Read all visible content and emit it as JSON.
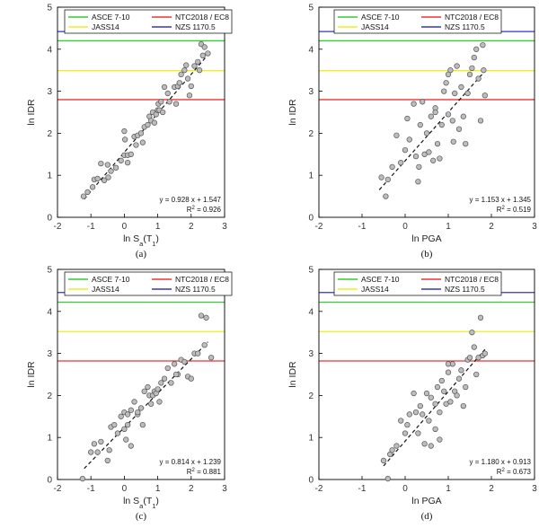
{
  "chart_data": [
    {
      "type": "scatter",
      "label": "(a)",
      "xlabel": "ln S",
      "xlabel_sub": "a",
      "xlabel_tail": "(T",
      "xlabel_sub2": "1",
      "xlabel_end": ")",
      "ylabel": "ln IDR",
      "xlim": [
        -2,
        3
      ],
      "ylim": [
        0,
        5
      ],
      "xticks": [
        "-2",
        "-1",
        "0",
        "1",
        "2",
        "3"
      ],
      "yticks": [
        "0",
        "1",
        "2",
        "3",
        "4",
        "5"
      ],
      "legend": [
        {
          "name": "ASCE 7-10",
          "color": "#33cc33"
        },
        {
          "name": "NTC2018 / EC8",
          "color": "#ee3333"
        },
        {
          "name": "JASS14",
          "color": "#eeee22"
        },
        {
          "name": "NZS 1170.5",
          "color": "#3333cc"
        }
      ],
      "hlines": [
        {
          "name": "NZS 1170.5",
          "y": 4.42,
          "color": "#3333cc"
        },
        {
          "name": "ASCE 7-10",
          "y": 4.2,
          "color": "#33cc33"
        },
        {
          "name": "JASS14",
          "y": 3.49,
          "color": "#eeee22"
        },
        {
          "name": "NTC2018 / EC8",
          "y": 2.8,
          "color": "#ee3333"
        }
      ],
      "fit": {
        "slope": 0.928,
        "intercept": 1.547,
        "x_range": [
          -1.2,
          2.5
        ]
      },
      "equation": "y = 0.928 x + 1.547",
      "r2_label": "R",
      "r2_sup": "2",
      "r2_value": " = 0.926",
      "points": [
        [
          -1.22,
          0.5
        ],
        [
          -1.1,
          0.6
        ],
        [
          -0.95,
          0.72
        ],
        [
          -0.9,
          0.9
        ],
        [
          -0.8,
          0.92
        ],
        [
          -0.7,
          1.28
        ],
        [
          -0.6,
          0.88
        ],
        [
          -0.5,
          1.25
        ],
        [
          -0.48,
          0.95
        ],
        [
          -0.4,
          1.1
        ],
        [
          -0.25,
          1.18
        ],
        [
          -0.1,
          1.35
        ],
        [
          0.0,
          1.48
        ],
        [
          0.0,
          2.05
        ],
        [
          0.02,
          1.85
        ],
        [
          0.1,
          1.3
        ],
        [
          0.1,
          1.48
        ],
        [
          0.2,
          1.5
        ],
        [
          0.3,
          1.92
        ],
        [
          0.35,
          1.72
        ],
        [
          0.4,
          1.95
        ],
        [
          0.5,
          2.0
        ],
        [
          0.55,
          1.78
        ],
        [
          0.6,
          2.15
        ],
        [
          0.7,
          2.2
        ],
        [
          0.75,
          2.4
        ],
        [
          0.8,
          2.3
        ],
        [
          0.85,
          2.5
        ],
        [
          0.9,
          2.25
        ],
        [
          0.95,
          2.45
        ],
        [
          1.0,
          2.55
        ],
        [
          1.02,
          2.7
        ],
        [
          1.05,
          2.55
        ],
        [
          1.1,
          2.75
        ],
        [
          1.15,
          2.5
        ],
        [
          1.2,
          3.1
        ],
        [
          1.3,
          2.95
        ],
        [
          1.35,
          2.75
        ],
        [
          1.5,
          3.1
        ],
        [
          1.55,
          2.7
        ],
        [
          1.6,
          3.12
        ],
        [
          1.65,
          3.2
        ],
        [
          1.7,
          3.4
        ],
        [
          1.8,
          3.5
        ],
        [
          1.85,
          3.62
        ],
        [
          1.9,
          3.3
        ],
        [
          1.95,
          2.9
        ],
        [
          2.0,
          3.12
        ],
        [
          2.1,
          3.6
        ],
        [
          2.2,
          3.7
        ],
        [
          2.25,
          3.5
        ],
        [
          2.3,
          4.12
        ],
        [
          2.35,
          3.85
        ],
        [
          2.4,
          4.05
        ],
        [
          2.5,
          3.9
        ]
      ]
    },
    {
      "type": "scatter",
      "label": "(b)",
      "xlabel": "ln PGA",
      "ylabel": "ln IDR",
      "xlim": [
        -2,
        3
      ],
      "ylim": [
        0,
        5
      ],
      "xticks": [
        "-2",
        "-1",
        "0",
        "1",
        "2",
        "3"
      ],
      "yticks": [
        "0",
        "1",
        "2",
        "3",
        "4",
        "5"
      ],
      "legend": [
        {
          "name": "ASCE 7-10",
          "color": "#33cc33"
        },
        {
          "name": "NTC2018 / EC8",
          "color": "#ee3333"
        },
        {
          "name": "JASS14",
          "color": "#eeee22"
        },
        {
          "name": "NZS 1170.5",
          "color": "#3333cc"
        }
      ],
      "hlines": [
        {
          "name": "NZS 1170.5",
          "y": 4.42,
          "color": "#3333cc"
        },
        {
          "name": "ASCE 7-10",
          "y": 4.2,
          "color": "#33cc33"
        },
        {
          "name": "JASS14",
          "y": 3.49,
          "color": "#eeee22"
        },
        {
          "name": "NTC2018 / EC8",
          "y": 2.8,
          "color": "#ee3333"
        }
      ],
      "fit": {
        "slope": 1.153,
        "intercept": 1.345,
        "x_range": [
          -0.6,
          1.85
        ]
      },
      "equation": "y = 1.153 x + 1.345",
      "r2_label": "R",
      "r2_sup": "2",
      "r2_value": " = 0.519",
      "points": [
        [
          -0.55,
          0.95
        ],
        [
          -0.45,
          0.5
        ],
        [
          -0.4,
          0.9
        ],
        [
          -0.3,
          1.2
        ],
        [
          -0.2,
          1.95
        ],
        [
          -0.1,
          1.3
        ],
        [
          0.0,
          1.6
        ],
        [
          0.05,
          2.35
        ],
        [
          0.1,
          1.85
        ],
        [
          0.2,
          2.7
        ],
        [
          0.25,
          1.45
        ],
        [
          0.3,
          0.85
        ],
        [
          0.32,
          1.2
        ],
        [
          0.35,
          2.2
        ],
        [
          0.4,
          2.75
        ],
        [
          0.45,
          1.5
        ],
        [
          0.5,
          2.0
        ],
        [
          0.55,
          1.55
        ],
        [
          0.6,
          2.4
        ],
        [
          0.65,
          1.35
        ],
        [
          0.7,
          2.6
        ],
        [
          0.75,
          1.75
        ],
        [
          0.8,
          1.4
        ],
        [
          0.85,
          2.2
        ],
        [
          0.9,
          3.0
        ],
        [
          0.95,
          3.2
        ],
        [
          1.0,
          2.45
        ],
        [
          1.05,
          3.5
        ],
        [
          1.1,
          2.3
        ],
        [
          1.12,
          1.8
        ],
        [
          1.15,
          2.95
        ],
        [
          1.2,
          3.6
        ],
        [
          1.25,
          2.1
        ],
        [
          1.3,
          3.1
        ],
        [
          1.35,
          2.4
        ],
        [
          1.4,
          1.75
        ],
        [
          1.45,
          2.95
        ],
        [
          1.5,
          3.4
        ],
        [
          1.55,
          3.55
        ],
        [
          1.6,
          3.8
        ],
        [
          1.65,
          4.0
        ],
        [
          1.7,
          3.3
        ],
        [
          1.75,
          2.3
        ],
        [
          1.8,
          4.1
        ],
        [
          1.82,
          3.5
        ],
        [
          1.85,
          2.9
        ],
        [
          1.0,
          3.4
        ],
        [
          0.7,
          2.5
        ]
      ]
    },
    {
      "type": "scatter",
      "label": "(c)",
      "xlabel": "ln S",
      "xlabel_sub": "a",
      "xlabel_tail": "(T",
      "xlabel_sub2": "1",
      "xlabel_end": ")",
      "ylabel": "ln IDR",
      "xlim": [
        -2,
        3
      ],
      "ylim": [
        0,
        5
      ],
      "xticks": [
        "-2",
        "-1",
        "0",
        "1",
        "2",
        "3"
      ],
      "yticks": [
        "0",
        "1",
        "2",
        "3",
        "4",
        "5"
      ],
      "legend": [
        {
          "name": "ASCE 7-10",
          "color": "#33cc33"
        },
        {
          "name": "NTC2018 / EC8",
          "color": "#ee3333"
        },
        {
          "name": "JASS14",
          "color": "#eeee22"
        },
        {
          "name": "NZS 1170.5",
          "color": "#3333cc"
        }
      ],
      "hlines": [
        {
          "name": "NZS 1170.5",
          "y": 4.45,
          "color": "#3333cc"
        },
        {
          "name": "ASCE 7-10",
          "y": 4.22,
          "color": "#33cc33"
        },
        {
          "name": "JASS14",
          "y": 3.52,
          "color": "#eeee22"
        },
        {
          "name": "NTC2018 / EC8",
          "y": 2.82,
          "color": "#ee3333"
        }
      ],
      "fit": {
        "slope": 0.814,
        "intercept": 1.239,
        "x_range": [
          -1.2,
          2.5
        ]
      },
      "equation": "y = 0.814 x + 1.239",
      "r2_label": "R",
      "r2_sup": "2",
      "r2_value": " = 0.881",
      "points": [
        [
          -1.25,
          0.02
        ],
        [
          -1.0,
          0.65
        ],
        [
          -0.9,
          0.85
        ],
        [
          -0.8,
          0.65
        ],
        [
          -0.7,
          0.9
        ],
        [
          -0.5,
          0.45
        ],
        [
          -0.45,
          0.7
        ],
        [
          -0.4,
          1.25
        ],
        [
          -0.3,
          1.3
        ],
        [
          -0.2,
          1.1
        ],
        [
          -0.1,
          1.5
        ],
        [
          0.0,
          1.6
        ],
        [
          0.0,
          1.2
        ],
        [
          0.05,
          0.95
        ],
        [
          0.1,
          1.3
        ],
        [
          0.1,
          1.55
        ],
        [
          0.2,
          1.65
        ],
        [
          0.2,
          0.8
        ],
        [
          0.3,
          1.85
        ],
        [
          0.4,
          1.55
        ],
        [
          0.5,
          1.7
        ],
        [
          0.55,
          1.3
        ],
        [
          0.6,
          2.1
        ],
        [
          0.7,
          2.2
        ],
        [
          0.75,
          2.0
        ],
        [
          0.8,
          1.8
        ],
        [
          0.85,
          2.0
        ],
        [
          0.9,
          2.1
        ],
        [
          0.95,
          2.05
        ],
        [
          1.0,
          2.15
        ],
        [
          1.05,
          1.85
        ],
        [
          1.1,
          2.3
        ],
        [
          1.2,
          2.4
        ],
        [
          1.3,
          2.65
        ],
        [
          1.4,
          2.3
        ],
        [
          1.5,
          2.75
        ],
        [
          1.6,
          2.5
        ],
        [
          1.7,
          2.85
        ],
        [
          1.8,
          2.8
        ],
        [
          1.9,
          2.45
        ],
        [
          2.0,
          2.4
        ],
        [
          2.1,
          3.0
        ],
        [
          2.2,
          3.0
        ],
        [
          2.3,
          3.9
        ],
        [
          2.4,
          3.2
        ],
        [
          2.45,
          3.85
        ],
        [
          2.6,
          2.9
        ],
        [
          1.55,
          2.5
        ],
        [
          0.4,
          1.6
        ]
      ]
    },
    {
      "type": "scatter",
      "label": "(d)",
      "xlabel": "ln PGA",
      "ylabel": "ln IDR",
      "xlim": [
        -2,
        3
      ],
      "ylim": [
        0,
        5
      ],
      "xticks": [
        "-2",
        "-1",
        "0",
        "1",
        "2",
        "3"
      ],
      "yticks": [
        "0",
        "1",
        "2",
        "3",
        "4",
        "5"
      ],
      "legend": [
        {
          "name": "ASCE 7-10",
          "color": "#33cc33"
        },
        {
          "name": "NTC2018 / EC8",
          "color": "#ee3333"
        },
        {
          "name": "JASS14",
          "color": "#eeee22"
        },
        {
          "name": "NZS 1170.5",
          "color": "#3333cc"
        }
      ],
      "hlines": [
        {
          "name": "NZS 1170.5",
          "y": 4.45,
          "color": "#3333cc"
        },
        {
          "name": "ASCE 7-10",
          "y": 4.22,
          "color": "#33cc33"
        },
        {
          "name": "JASS14",
          "y": 3.52,
          "color": "#eeee22"
        },
        {
          "name": "NTC2018 / EC8",
          "y": 2.82,
          "color": "#ee3333"
        }
      ],
      "fit": {
        "slope": 1.18,
        "intercept": 0.913,
        "x_range": [
          -0.5,
          1.85
        ]
      },
      "equation": "y = 1.180 x + 0.913",
      "r2_label": "R",
      "r2_sup": "2",
      "r2_value": " = 0.673",
      "points": [
        [
          -0.5,
          0.45
        ],
        [
          -0.4,
          0.02
        ],
        [
          -0.35,
          0.6
        ],
        [
          -0.3,
          0.7
        ],
        [
          -0.2,
          0.8
        ],
        [
          -0.1,
          1.4
        ],
        [
          0.0,
          1.1
        ],
        [
          0.05,
          1.3
        ],
        [
          0.1,
          1.55
        ],
        [
          0.2,
          2.05
        ],
        [
          0.25,
          1.6
        ],
        [
          0.3,
          1.1
        ],
        [
          0.35,
          1.75
        ],
        [
          0.4,
          1.55
        ],
        [
          0.45,
          0.85
        ],
        [
          0.5,
          2.05
        ],
        [
          0.55,
          1.4
        ],
        [
          0.6,
          0.8
        ],
        [
          0.6,
          1.95
        ],
        [
          0.7,
          1.2
        ],
        [
          0.75,
          2.2
        ],
        [
          0.8,
          0.95
        ],
        [
          0.8,
          1.6
        ],
        [
          0.85,
          2.35
        ],
        [
          0.9,
          2.1
        ],
        [
          0.95,
          1.8
        ],
        [
          1.0,
          2.55
        ],
        [
          1.05,
          1.85
        ],
        [
          1.1,
          2.75
        ],
        [
          1.15,
          2.1
        ],
        [
          1.2,
          2.0
        ],
        [
          1.25,
          2.4
        ],
        [
          1.3,
          2.6
        ],
        [
          1.35,
          1.75
        ],
        [
          1.4,
          2.2
        ],
        [
          1.45,
          2.85
        ],
        [
          1.5,
          2.9
        ],
        [
          1.55,
          3.5
        ],
        [
          1.6,
          3.15
        ],
        [
          1.65,
          2.5
        ],
        [
          1.7,
          2.9
        ],
        [
          1.75,
          3.85
        ],
        [
          1.8,
          2.95
        ],
        [
          1.85,
          3.0
        ],
        [
          1.0,
          2.75
        ],
        [
          0.7,
          1.8
        ]
      ]
    }
  ]
}
